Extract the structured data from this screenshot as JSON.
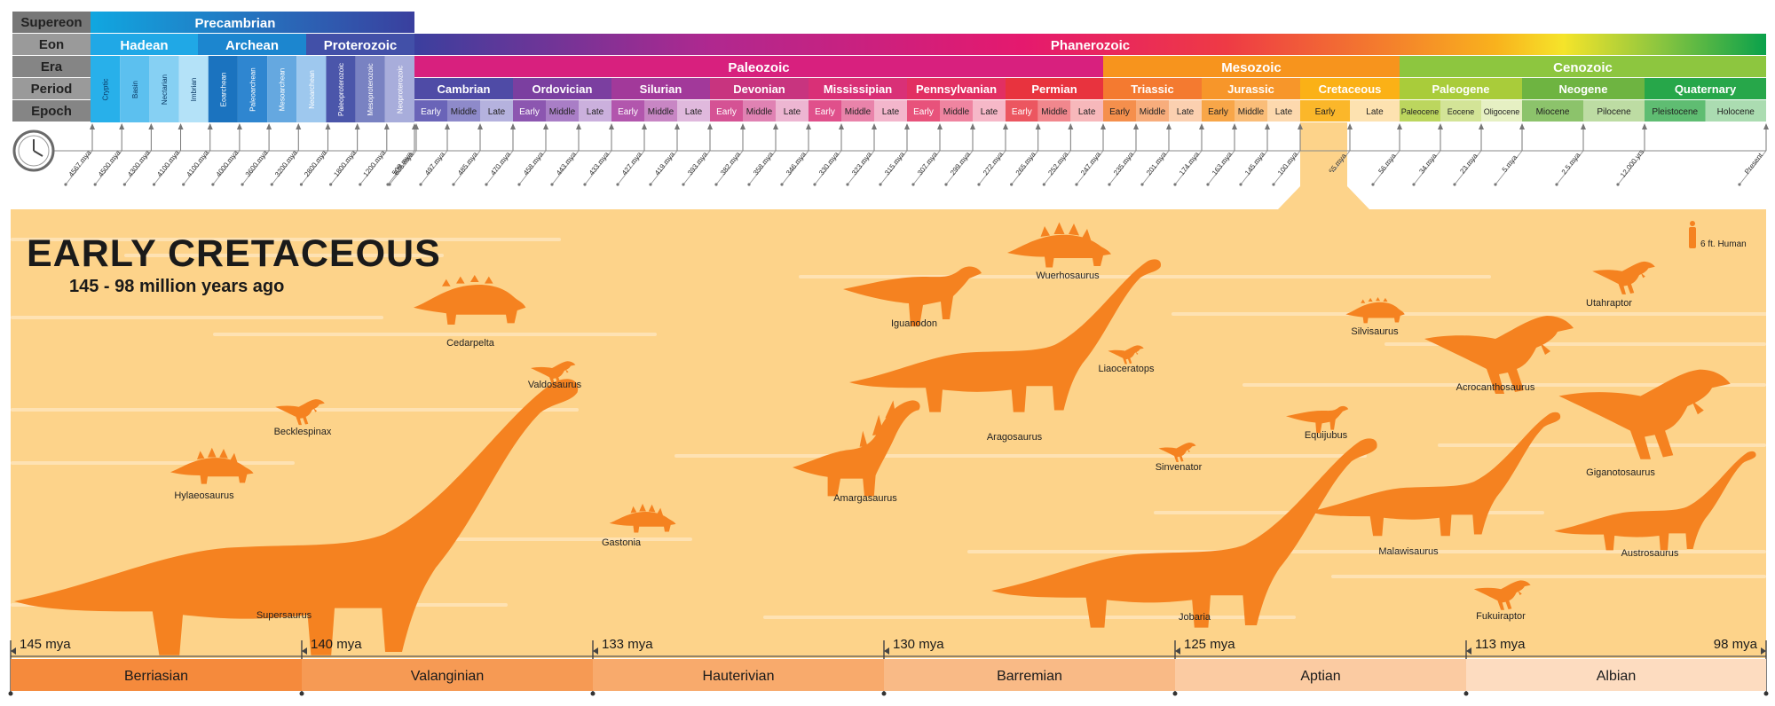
{
  "row_labels": [
    "Supereon",
    "Eon",
    "Era",
    "Period",
    "Epoch"
  ],
  "supereons": [
    {
      "name": "Precambrian",
      "color": "#1a8bd8"
    }
  ],
  "eons": [
    {
      "name": "Hadean",
      "color": "#20a8e6"
    },
    {
      "name": "Archean",
      "color": "#1c86cf"
    },
    {
      "name": "Proterozoic",
      "color": "#4250a8"
    },
    {
      "name": "Phanerozoic",
      "color": "#e5196e"
    }
  ],
  "precambrian_subdivisions": [
    {
      "name": "Cryptic",
      "color": "#28b0ea"
    },
    {
      "name": "Basin",
      "color": "#5cc0ef"
    },
    {
      "name": "Nectarian",
      "color": "#86d0f3"
    },
    {
      "name": "Imbrian",
      "color": "#b4e2f8"
    },
    {
      "name": "Eoarchean",
      "color": "#1b73bf"
    },
    {
      "name": "Paleoarchean",
      "color": "#2f86d0"
    },
    {
      "name": "Mesoarchean",
      "color": "#65a8e0"
    },
    {
      "name": "Neoarchean",
      "color": "#9ec8ee"
    },
    {
      "name": "Paleoproterozoic",
      "color": "#4b56aa"
    },
    {
      "name": "Mesoproterozoic",
      "color": "#7982c2"
    },
    {
      "name": "Neoproterozoic",
      "color": "#a8addb"
    }
  ],
  "eras": [
    {
      "name": "Paleozoic",
      "color": "#d8207e"
    },
    {
      "name": "Mesozoic",
      "color": "#f7941d"
    },
    {
      "name": "Cenozoic",
      "color": "#8dc63f"
    }
  ],
  "periods": [
    {
      "name": "Cambrian",
      "color": "#4f4ba6",
      "epoch_colors": [
        "#6a64b8",
        "#8e8aca",
        "#b5b2de"
      ]
    },
    {
      "name": "Ordovician",
      "color": "#7b3fa0",
      "epoch_colors": [
        "#8c56b0",
        "#a97ec6",
        "#cbb0dd"
      ]
    },
    {
      "name": "Silurian",
      "color": "#a2399a",
      "epoch_colors": [
        "#b256ad",
        "#c886c4",
        "#e0b9dd"
      ]
    },
    {
      "name": "Devonian",
      "color": "#c8347f",
      "epoch_colors": [
        "#d55294",
        "#e082b3",
        "#edb6d2"
      ]
    },
    {
      "name": "Mississipian",
      "color": "#d93077",
      "epoch_colors": [
        "#e0508b",
        "#e983aa",
        "#f3b6cc"
      ]
    },
    {
      "name": "Pennsylvanian",
      "color": "#e22f62",
      "epoch_colors": [
        "#e8527b",
        "#ef84a0",
        "#f6b8c8"
      ]
    },
    {
      "name": "Permian",
      "color": "#e8333e",
      "epoch_colors": [
        "#ec5660",
        "#f1878d",
        "#f7b8bb"
      ]
    },
    {
      "name": "Triassic",
      "color": "#f47a30",
      "epoch_colors": [
        "#f58f4c",
        "#f8ad7c",
        "#fbd0b0"
      ]
    },
    {
      "name": "Jurassic",
      "color": "#f7962a",
      "epoch_colors": [
        "#f8a648",
        "#fabd78",
        "#fdd9ae"
      ]
    },
    {
      "name": "Cretaceous",
      "color": "#fbb116",
      "epoch_colors": [
        "#fbb72a",
        "#fde2b0"
      ]
    },
    {
      "name": "Paleogene",
      "color": "#a9cc3a",
      "epoch_colors": [
        "#bcd65e",
        "#d3e497",
        "#e6f0c3"
      ]
    },
    {
      "name": "Neogene",
      "color": "#6eb441",
      "epoch_colors": [
        "#8cc36b",
        "#bddca3"
      ]
    },
    {
      "name": "Quaternary",
      "color": "#27a74a",
      "epoch_colors": [
        "#5fbd72",
        "#abdcb1"
      ]
    }
  ],
  "epochs": [
    "Early",
    "Middle",
    "Late",
    "Early",
    "Middle",
    "Late",
    "Early",
    "Middle",
    "Late",
    "Early",
    "Middle",
    "Late",
    "Early",
    "Middle",
    "Late",
    "Early",
    "Middle",
    "Late",
    "Early",
    "Middle",
    "Late",
    "Early",
    "Middle",
    "Late",
    "Early",
    "Middle",
    "Late",
    "Early",
    "Late",
    "Paleocene",
    "Eocene",
    "Oligocene",
    "Miocene",
    "Pilocene",
    "Pleistocene",
    "Holocene"
  ],
  "time_ticks": [
    "4567 mya",
    "4500 mya",
    "4300 mya",
    "4100 mya",
    "4100 mya",
    "4000 mya",
    "3600 mya",
    "3200 mya",
    "2800 mya",
    "1800 mya",
    "1200 mya",
    "635 mya",
    "509 mya",
    "497 mya",
    "485 mya",
    "470 mya",
    "458 mya",
    "443 mya",
    "433 mya",
    "427 mya",
    "419 mya",
    "393 mya",
    "382 mya",
    "358 mya",
    "346 mya",
    "330 mya",
    "323 mya",
    "315 mya",
    "307 mya",
    "299 mya",
    "272 mya",
    "265 mya",
    "252 mya",
    "247 mya",
    "235 mya",
    "201 mya",
    "174 mya",
    "163 mya",
    "145 mya",
    "100 mya",
    "65 mya",
    "56 mya",
    "34 mya",
    "23 mya",
    "5 mya",
    "2.5 mya",
    "12,000 yrs",
    "Present"
  ],
  "focus": {
    "title": "EARLY CRETACEOUS",
    "subtitle": "145 - 98 million years ago",
    "scale_label": "6 ft. Human",
    "panel_color": "#fdd38a",
    "dino_color": "#f58220"
  },
  "dinosaurs": [
    {
      "name": "Supersaurus"
    },
    {
      "name": "Hylaeosaurus"
    },
    {
      "name": "Becklespinax"
    },
    {
      "name": "Cedarpelta"
    },
    {
      "name": "Valdosaurus"
    },
    {
      "name": "Gastonia"
    },
    {
      "name": "Amargasaurus"
    },
    {
      "name": "Iguanodon"
    },
    {
      "name": "Wuerhosaurus"
    },
    {
      "name": "Aragosaurus"
    },
    {
      "name": "Liaoceratops"
    },
    {
      "name": "Sinvenator"
    },
    {
      "name": "Jobaria"
    },
    {
      "name": "Equijubus"
    },
    {
      "name": "Silvisaurus"
    },
    {
      "name": "Malawisaurus"
    },
    {
      "name": "Fukuiraptor"
    },
    {
      "name": "Acrocanthosaurus"
    },
    {
      "name": "Utahraptor"
    },
    {
      "name": "Giganotosaurus"
    },
    {
      "name": "Austrosaurus"
    }
  ],
  "stage_ticks": [
    "145 mya",
    "140 mya",
    "133 mya",
    "130 mya",
    "125 mya",
    "113 mya",
    "98 mya"
  ],
  "stages": [
    {
      "name": "Berriasian",
      "color": "#f58a3c"
    },
    {
      "name": "Valanginian",
      "color": "#f69a54"
    },
    {
      "name": "Hauterivian",
      "color": "#f8aa6c"
    },
    {
      "name": "Barremian",
      "color": "#f9ba86"
    },
    {
      "name": "Aptian",
      "color": "#fbcba2"
    },
    {
      "name": "Albian",
      "color": "#fddcc0"
    }
  ]
}
